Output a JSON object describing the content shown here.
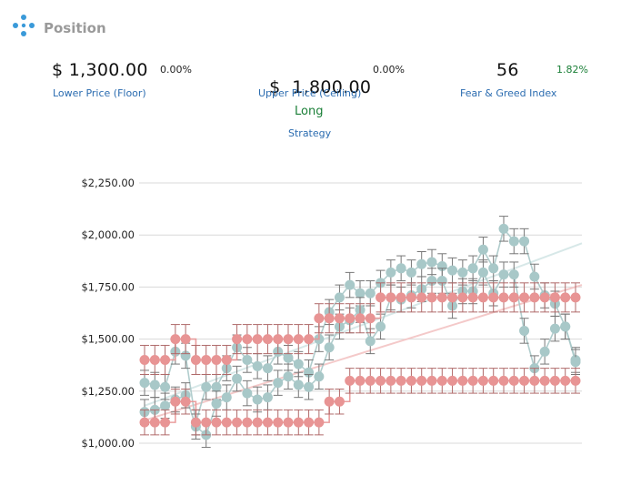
{
  "header": {
    "title": "Position",
    "icon": "position-icon"
  },
  "stats": {
    "floor": {
      "value": "$ 1,300.00",
      "change": "0.00%",
      "label": "Lower Price (Floor)"
    },
    "ceiling": {
      "value": "$  1,800.00",
      "change": "0.00%",
      "label": "Upper Price (Ceiling)"
    },
    "fear_greed": {
      "value": "56",
      "change": "1.82%",
      "label": "Fear & Greed Index"
    },
    "strategy": {
      "value": "Long",
      "label": "Strategy"
    }
  },
  "colors": {
    "price": "#a8c8c8",
    "bands": "#e89494",
    "error": "#777777",
    "trend_pink": "#f4c9c9",
    "trend_teal": "#d7e8e8",
    "green": "#1a7f37",
    "link": "#2b6cb0"
  },
  "chart_data": {
    "type": "line",
    "ylim": [
      1000,
      2250
    ],
    "yticks": [
      1000,
      1250,
      1500,
      1750,
      2000,
      2250
    ],
    "ytick_labels": [
      "$1,000.00",
      "$1,250.00",
      "$1,500.00",
      "$1,750.00",
      "$2,000.00",
      "$2,250.00"
    ],
    "x_count": 43,
    "series": [
      {
        "values": [
          1290,
          1280,
          1270,
          1440,
          1420,
          1100,
          1270,
          1270,
          1360,
          1460,
          1400,
          1370,
          1360,
          1440,
          1410,
          1380,
          1340,
          1500,
          1630,
          1700,
          1760,
          1720,
          1720,
          1770,
          1820,
          1840,
          1820,
          1860,
          1870,
          1850,
          1830,
          1820,
          1840,
          1930,
          1840,
          2030,
          1970,
          1970,
          1800,
          1710,
          1670,
          1560,
          1400
        ],
        "error": 60
      },
      {
        "values": [
          1150,
          1160,
          1180,
          1210,
          1230,
          1080,
          1040,
          1190,
          1220,
          1310,
          1240,
          1210,
          1220,
          1290,
          1320,
          1280,
          1270,
          1320,
          1460,
          1560,
          1590,
          1640,
          1490,
          1560,
          1700,
          1690,
          1710,
          1740,
          1780,
          1780,
          1660,
          1730,
          1730,
          1820,
          1720,
          1810,
          1810,
          1540,
          1360,
          1440,
          1550,
          1560,
          1390
        ],
        "error": 60
      },
      {
        "values": [
          1400,
          1400,
          1400,
          1500,
          1500,
          1400,
          1400,
          1400,
          1400,
          1500,
          1500,
          1500,
          1500,
          1500,
          1500,
          1500,
          1500,
          1600,
          1600,
          1600,
          1600,
          1600,
          1600,
          1700,
          1700,
          1700,
          1700,
          1700,
          1700,
          1700,
          1700,
          1700,
          1700,
          1700,
          1700,
          1700,
          1700,
          1700,
          1700,
          1700,
          1700,
          1700,
          1700
        ],
        "error": 70
      },
      {
        "values": [
          1100,
          1100,
          1100,
          1200,
          1200,
          1100,
          1100,
          1100,
          1100,
          1100,
          1100,
          1100,
          1100,
          1100,
          1100,
          1100,
          1100,
          1100,
          1200,
          1200,
          1300,
          1300,
          1300,
          1300,
          1300,
          1300,
          1300,
          1300,
          1300,
          1300,
          1300,
          1300,
          1300,
          1300,
          1300,
          1300,
          1300,
          1300,
          1300,
          1300,
          1300,
          1300,
          1300
        ],
        "error": 60
      }
    ],
    "trend_lines": [
      {
        "from": 1110,
        "to": 1760
      },
      {
        "from": 1180,
        "to": 1960
      }
    ],
    "grid": true,
    "legend": "none"
  }
}
